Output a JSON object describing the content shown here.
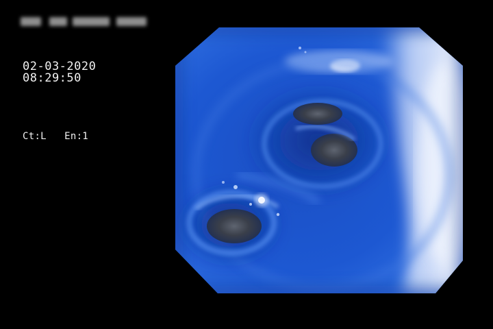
{
  "overlay": {
    "date": "02-03-2020",
    "time": "08:29:50",
    "ct_label": "Ct:L",
    "en_label": "En:1"
  },
  "colors": {
    "background": "#000000",
    "text": "#f2f2f2",
    "tissue_blue": "#1e57c8",
    "highlight": "#dfe8fb",
    "lumen_dark": "#2b3038"
  },
  "image": {
    "subject": "endoscopic-view"
  }
}
